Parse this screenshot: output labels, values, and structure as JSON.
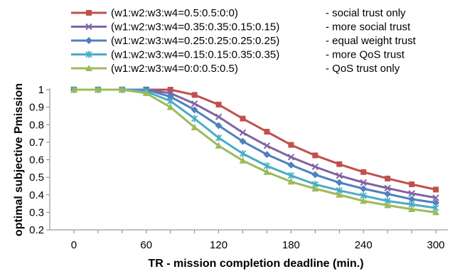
{
  "chart_data": {
    "type": "line",
    "xlabel": "TR - mission completion deadline (min.)",
    "ylabel": "optimal subjective Pmission",
    "x_ticks": [
      "0",
      "60",
      "120",
      "180",
      "240",
      "300"
    ],
    "y_ticks": [
      "0.2",
      "0.3",
      "0.4",
      "0.5",
      "0.6",
      "0.7",
      "0.8",
      "0.9",
      "1"
    ],
    "xlim": [
      -20,
      310
    ],
    "ylim": [
      0.2,
      1.0
    ],
    "grid": false,
    "legend_position": "top",
    "x": [
      0,
      20,
      40,
      60,
      80,
      100,
      120,
      140,
      160,
      180,
      200,
      220,
      240,
      260,
      280,
      300
    ],
    "series": [
      {
        "name": "(w1:w2:w3:w4=0.5:0.5:0:0)",
        "description": "- social trust only",
        "color": "#C0504D",
        "marker": "square",
        "values": [
          1,
          1,
          1,
          1,
          1,
          0.97,
          0.915,
          0.835,
          0.76,
          0.685,
          0.625,
          0.575,
          0.53,
          0.493,
          0.46,
          0.43
        ]
      },
      {
        "name": "(w1:w2:w3:w4=0.35:0.35:0.15:0.15)",
        "description": "- more social trust",
        "color": "#8064A2",
        "marker": "x",
        "values": [
          1,
          1,
          1,
          1,
          0.98,
          0.92,
          0.845,
          0.755,
          0.68,
          0.615,
          0.56,
          0.51,
          0.47,
          0.438,
          0.408,
          0.383
        ]
      },
      {
        "name": "(w1:w2:w3:w4=0.25:0.25:0.25:0.25)",
        "description": "- equal weight trust",
        "color": "#4F81BD",
        "marker": "diamond",
        "values": [
          1,
          1,
          1,
          1,
          0.96,
          0.885,
          0.795,
          0.705,
          0.63,
          0.57,
          0.515,
          0.47,
          0.435,
          0.405,
          0.375,
          0.355
        ]
      },
      {
        "name": "(w1:w2:w3:w4=0.15:0.15:0.35:0.35)",
        "description": "- more QoS trust",
        "color": "#4BACC6",
        "marker": "asterisk",
        "values": [
          1,
          1,
          1,
          0.99,
          0.935,
          0.835,
          0.725,
          0.635,
          0.565,
          0.51,
          0.46,
          0.425,
          0.395,
          0.365,
          0.345,
          0.325
        ]
      },
      {
        "name": "(w1:w2:w3:w4=0:0:0.5:0.5)",
        "description": "- QoS trust only",
        "color": "#9BBB59",
        "marker": "triangle",
        "values": [
          1,
          1,
          1,
          0.98,
          0.9,
          0.785,
          0.68,
          0.595,
          0.53,
          0.475,
          0.435,
          0.4,
          0.365,
          0.34,
          0.318,
          0.3
        ]
      }
    ]
  }
}
